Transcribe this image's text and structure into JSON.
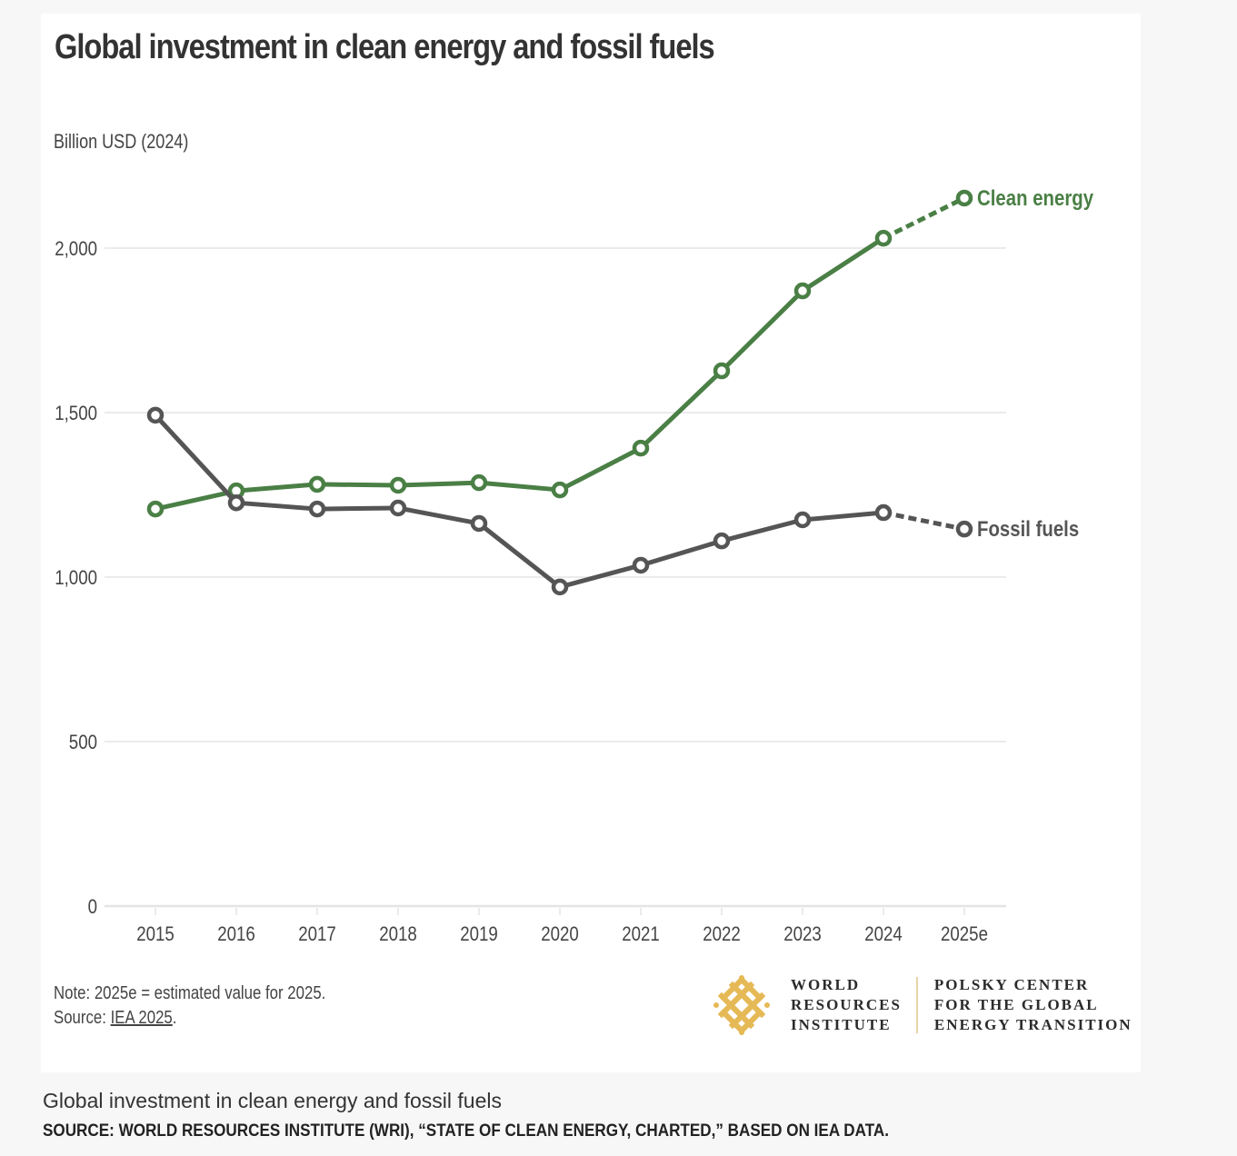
{
  "chart_data": {
    "type": "line",
    "title": "Global investment in clean energy and fossil fuels",
    "ylabel": "Billion USD (2024)",
    "xlabel": "",
    "categories": [
      "2015",
      "2016",
      "2017",
      "2018",
      "2019",
      "2020",
      "2021",
      "2022",
      "2023",
      "2024",
      "2025e"
    ],
    "ylim": [
      0,
      2200
    ],
    "yticks": [
      0,
      500,
      1000,
      1500,
      2000
    ],
    "ytick_labels": [
      "0",
      "500",
      "1,000",
      "1,500",
      "2,000"
    ],
    "grid": true,
    "legend": "direct labels at line ends (right)",
    "estimated_categories": [
      "2025e"
    ],
    "series": [
      {
        "name": "Clean energy",
        "color": "#4a7f45",
        "values": [
          1207,
          1262,
          1282,
          1279,
          1287,
          1265,
          1392,
          1627,
          1870,
          2030,
          2152
        ]
      },
      {
        "name": "Fossil fuels",
        "color": "#555555",
        "values": [
          1492,
          1226,
          1207,
          1210,
          1163,
          970,
          1036,
          1110,
          1174,
          1196,
          1146
        ]
      }
    ]
  },
  "footer": {
    "note": "Note: 2025e = estimated value for 2025.",
    "source_prefix": "Source: ",
    "source_link": "IEA 2025",
    "source_suffix": "."
  },
  "logos": {
    "wri": [
      "World",
      "Resources",
      "Institute"
    ],
    "polsky": [
      "Polsky Center",
      "for the Global",
      "Energy Transition"
    ],
    "accent_color": "#e5b955"
  },
  "caption": {
    "title": "Global investment in clean energy and fossil fuels",
    "source": "SOURCE: WORLD RESOURCES INSTITUTE (WRI), “STATE OF CLEAN ENERGY, CHARTED,” BASED ON IEA DATA."
  }
}
